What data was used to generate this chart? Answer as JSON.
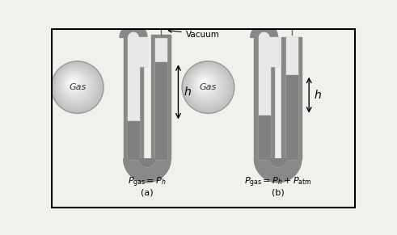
{
  "background_color": "#f0f0ec",
  "border_color": "#000000",
  "tube_wall_color": "#888888",
  "tube_inner_color": "#e8e8e8",
  "mercury_color": "#808080",
  "label_a": "(a)",
  "label_b": "(b)",
  "eq_a": "$P_\\mathrm{gas} = P_h$",
  "eq_b": "$P_\\mathrm{gas} = P_h + P_\\mathrm{atm}$",
  "vacuum_label": "Vacuum",
  "gas_label": "Gas",
  "h_label": "$h$",
  "text_color": "#000000"
}
